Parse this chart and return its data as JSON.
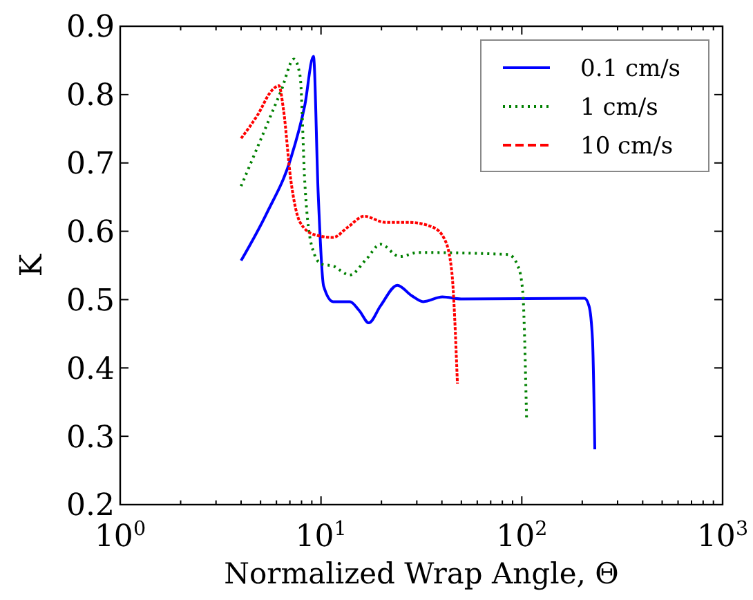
{
  "chart_data": {
    "type": "line",
    "xlabel": "Normalized Wrap Angle, Θ",
    "ylabel": "K",
    "log": "x",
    "xlim": [
      1,
      1000
    ],
    "xticks": [
      {
        "value": 1,
        "label": "10$^{0}$"
      },
      {
        "value": 10,
        "label": "10$^{1}$"
      },
      {
        "value": 100,
        "label": "10$^{2}$"
      },
      {
        "value": 1000,
        "label": "10$^{3}$"
      }
    ],
    "ylim": [
      0.2,
      0.9
    ],
    "yticks": [
      0.2,
      0.3,
      0.4,
      0.5,
      0.6,
      0.7,
      0.8,
      0.9
    ],
    "grid": false,
    "legend": "top right",
    "series": [
      {
        "name": "0.1 cm/s",
        "color": "#0000ff",
        "line_style": "solid",
        "x": [
          4.0,
          5.38,
          7.06,
          8.3,
          9.17,
          9.68,
          10.3,
          11.5,
          13.9,
          15.5,
          17.3,
          19.8,
          24,
          28.2,
          32.3,
          40.2,
          49.9,
          205,
          216,
          225,
          231
        ],
        "values": [
          0.557,
          0.627,
          0.706,
          0.784,
          0.856,
          0.656,
          0.52,
          0.497,
          0.497,
          0.484,
          0.466,
          0.491,
          0.521,
          0.506,
          0.497,
          0.504,
          0.501,
          0.502,
          0.491,
          0.441,
          0.281
        ]
      },
      {
        "name": "1 cm/s",
        "color": "#008000",
        "line_style": "dotted",
        "x": [
          4.0,
          5.38,
          6.34,
          7.34,
          7.87,
          8.31,
          9.02,
          10.05,
          11.5,
          13.9,
          16.8,
          19.8,
          24.6,
          30.6,
          85.9,
          95.7,
          101,
          105.6
        ],
        "values": [
          0.666,
          0.756,
          0.806,
          0.852,
          0.827,
          0.67,
          0.577,
          0.552,
          0.549,
          0.536,
          0.559,
          0.581,
          0.563,
          0.569,
          0.566,
          0.549,
          0.513,
          0.327
        ]
      },
      {
        "name": "10 cm/s",
        "color": "#ff0000",
        "line_style": "dashed",
        "x": [
          4.0,
          4.83,
          5.69,
          6.17,
          6.51,
          7.06,
          7.87,
          9.27,
          11.5,
          13.6,
          16.4,
          20.9,
          27.5,
          36,
          41.3,
          44.8,
          47.8
        ],
        "values": [
          0.736,
          0.77,
          0.806,
          0.813,
          0.777,
          0.677,
          0.613,
          0.595,
          0.591,
          0.606,
          0.622,
          0.613,
          0.613,
          0.606,
          0.588,
          0.541,
          0.377
        ]
      }
    ]
  }
}
